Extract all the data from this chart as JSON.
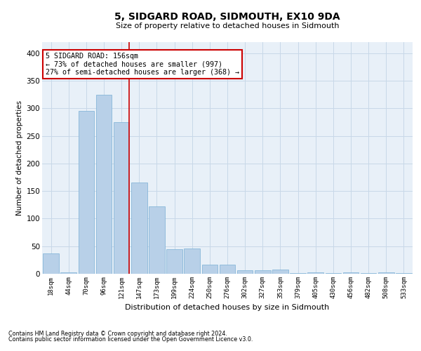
{
  "title": "5, SIDGARD ROAD, SIDMOUTH, EX10 9DA",
  "subtitle": "Size of property relative to detached houses in Sidmouth",
  "xlabel": "Distribution of detached houses by size in Sidmouth",
  "ylabel": "Number of detached properties",
  "bar_labels": [
    "18sqm",
    "44sqm",
    "70sqm",
    "96sqm",
    "121sqm",
    "147sqm",
    "173sqm",
    "199sqm",
    "224sqm",
    "250sqm",
    "276sqm",
    "302sqm",
    "327sqm",
    "353sqm",
    "379sqm",
    "405sqm",
    "430sqm",
    "456sqm",
    "482sqm",
    "508sqm",
    "533sqm"
  ],
  "bar_values": [
    37,
    2,
    295,
    325,
    275,
    165,
    122,
    44,
    46,
    16,
    16,
    7,
    6,
    8,
    1,
    2,
    1,
    3,
    1,
    2,
    1
  ],
  "bar_color": "#b8d0e8",
  "bar_edge_color": "#7aafd4",
  "vline_x": 4.42,
  "annotation_title": "5 SIDGARD ROAD: 156sqm",
  "annotation_line1": "← 73% of detached houses are smaller (997)",
  "annotation_line2": "27% of semi-detached houses are larger (368) →",
  "annotation_box_color": "#ffffff",
  "annotation_box_edge": "#cc0000",
  "vline_color": "#cc0000",
  "grid_color": "#c8d8e8",
  "bg_color": "#e8f0f8",
  "footer1": "Contains HM Land Registry data © Crown copyright and database right 2024.",
  "footer2": "Contains public sector information licensed under the Open Government Licence v3.0.",
  "ylim": [
    0,
    420
  ],
  "yticks": [
    0,
    50,
    100,
    150,
    200,
    250,
    300,
    350,
    400
  ]
}
